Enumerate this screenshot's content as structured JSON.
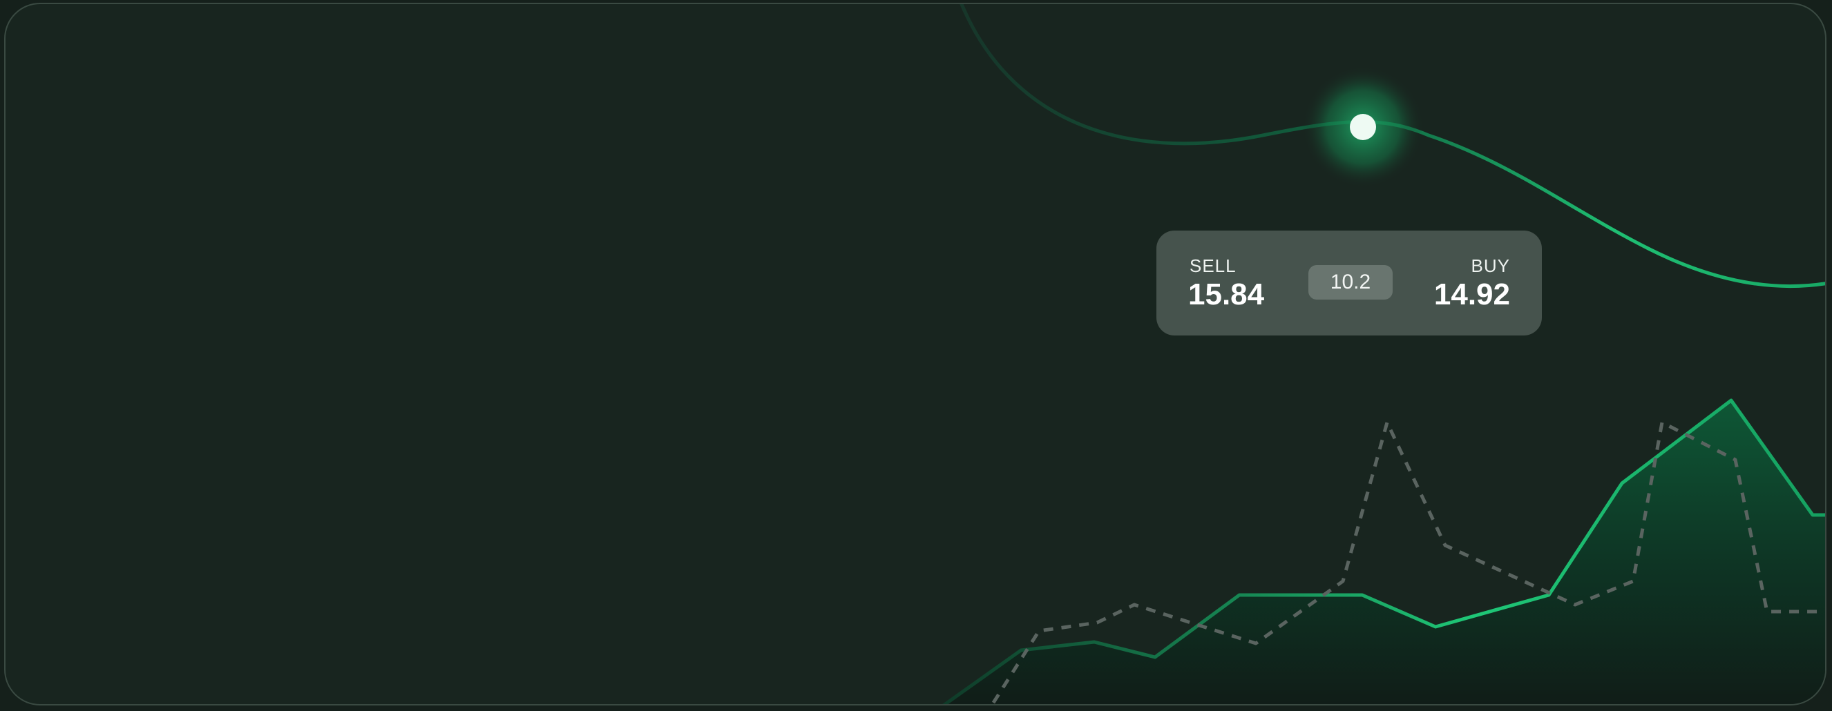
{
  "ticker": {
    "sell_label": "SELL",
    "sell_value": "15.84",
    "spread_value": "10.2",
    "buy_label": "BUY",
    "buy_value": "14.92"
  },
  "colors": {
    "background": "#18251f",
    "accent_green": "#1fbf73",
    "dashed_series": "#5a6460",
    "ticker_panel": "#46534d",
    "spread_chip": "#69756f"
  },
  "icons": {
    "cursor_marker": "glowing-dot-icon"
  }
}
